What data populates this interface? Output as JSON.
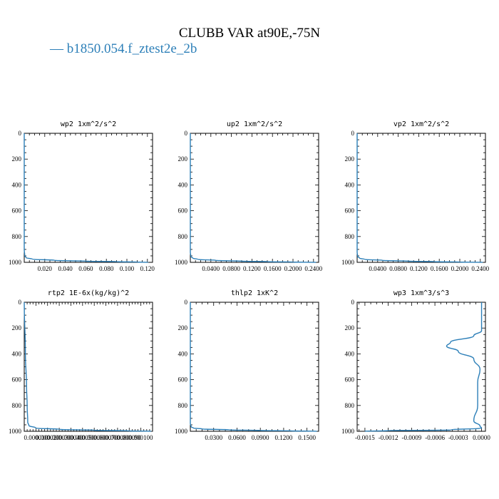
{
  "title": "CLUBB VAR at90E,-75N",
  "legend": {
    "dash": "—",
    "label": "b1850.054.f_ztest2e_2b"
  },
  "colors": {
    "line": "#2c7fb8",
    "axis": "#000000"
  },
  "chart_data": [
    {
      "type": "line",
      "title": "wp2   1xm^2/s^2",
      "ylim": [
        1000,
        0
      ],
      "yticks": [
        "0",
        "200",
        "400",
        "600",
        "800",
        "1000"
      ],
      "xlim": [
        0.0,
        0.125
      ],
      "xticks": [
        {
          "v": 0.02,
          "label": "0.020"
        },
        {
          "v": 0.04,
          "label": "0.040"
        },
        {
          "v": 0.06,
          "label": "0.060"
        },
        {
          "v": 0.08,
          "label": "0.080"
        },
        {
          "v": 0.1,
          "label": "0.100"
        },
        {
          "v": 0.12,
          "label": "0.120"
        }
      ],
      "series": [
        {
          "x": [
            0.0,
            0.0,
            0.0005,
            0.002,
            0.008,
            0.03,
            0.06,
            0.09,
            0.11,
            0.121
          ],
          "y": [
            0,
            900,
            950,
            965,
            975,
            985,
            991,
            995,
            998,
            1000
          ]
        }
      ]
    },
    {
      "type": "line",
      "title": "up2   1xm^2/s^2",
      "ylim": [
        1000,
        0
      ],
      "yticks": [
        "0",
        "200",
        "400",
        "600",
        "800",
        "1000"
      ],
      "xlim": [
        0.0,
        0.25
      ],
      "xticks": [
        {
          "v": 0.04,
          "label": "0.0400"
        },
        {
          "v": 0.08,
          "label": "0.0800"
        },
        {
          "v": 0.12,
          "label": "0.1200"
        },
        {
          "v": 0.16,
          "label": "0.1600"
        },
        {
          "v": 0.2,
          "label": "0.2000"
        },
        {
          "v": 0.24,
          "label": "0.2400"
        }
      ],
      "series": [
        {
          "x": [
            0.0,
            0.0,
            0.001,
            0.005,
            0.015,
            0.05,
            0.1,
            0.15,
            0.2,
            0.245
          ],
          "y": [
            0,
            920,
            955,
            968,
            977,
            985,
            991,
            995,
            998,
            1000
          ]
        }
      ]
    },
    {
      "type": "line",
      "title": "vp2   1xm^2/s^2",
      "ylim": [
        1000,
        0
      ],
      "yticks": [
        "0",
        "200",
        "400",
        "600",
        "800",
        "1000"
      ],
      "xlim": [
        0.0,
        0.25
      ],
      "xticks": [
        {
          "v": 0.04,
          "label": "0.0400"
        },
        {
          "v": 0.08,
          "label": "0.0800"
        },
        {
          "v": 0.12,
          "label": "0.1200"
        },
        {
          "v": 0.16,
          "label": "0.1600"
        },
        {
          "v": 0.2,
          "label": "0.2000"
        },
        {
          "v": 0.24,
          "label": "0.2400"
        }
      ],
      "series": [
        {
          "x": [
            0.0,
            0.0,
            0.001,
            0.005,
            0.015,
            0.05,
            0.1,
            0.15,
            0.2,
            0.245
          ],
          "y": [
            0,
            920,
            955,
            968,
            977,
            985,
            991,
            995,
            998,
            1000
          ]
        }
      ]
    },
    {
      "type": "line",
      "title": "rtp2   1E-6x(kg/kg)^2",
      "ylim": [
        1000,
        0
      ],
      "yticks": [
        "0",
        "200",
        "400",
        "600",
        "800",
        "1000"
      ],
      "xlim": [
        0.0,
        0.00011
      ],
      "xticks": [
        {
          "v": 1e-05,
          "label": "0.000010"
        },
        {
          "v": 2e-05,
          "label": "0.000020"
        },
        {
          "v": 3e-05,
          "label": "0.000030"
        },
        {
          "v": 4e-05,
          "label": "0.000040"
        },
        {
          "v": 5e-05,
          "label": "0.000050"
        },
        {
          "v": 6e-05,
          "label": "0.000060"
        },
        {
          "v": 7e-05,
          "label": "0.000070"
        },
        {
          "v": 8e-05,
          "label": "0.000080"
        },
        {
          "v": 9e-05,
          "label": "0.000090"
        },
        {
          "v": 0.0001,
          "label": "0.000100"
        }
      ],
      "series": [
        {
          "x": [
            0.0,
            1e-06,
            2e-06,
            2.5e-06,
            3e-06,
            4e-06,
            1e-05,
            3e-05,
            6e-05,
            9e-05,
            0.000109
          ],
          "y": [
            0,
            400,
            650,
            800,
            930,
            955,
            975,
            985,
            992,
            997,
            1000
          ]
        }
      ]
    },
    {
      "type": "line",
      "title": "thlp2   1xK^2",
      "ylim": [
        1000,
        0
      ],
      "yticks": [
        "0",
        "200",
        "400",
        "600",
        "800",
        "1000"
      ],
      "xlim": [
        0.0,
        0.165
      ],
      "xticks": [
        {
          "v": 0.03,
          "label": "0.0300"
        },
        {
          "v": 0.06,
          "label": "0.0600"
        },
        {
          "v": 0.09,
          "label": "0.0900"
        },
        {
          "v": 0.12,
          "label": "0.1200"
        },
        {
          "v": 0.15,
          "label": "0.1500"
        }
      ],
      "series": [
        {
          "x": [
            0.0,
            0.0,
            0.001,
            0.004,
            0.015,
            0.05,
            0.09,
            0.13,
            0.163
          ],
          "y": [
            0,
            940,
            965,
            975,
            982,
            989,
            994,
            997,
            1000
          ]
        }
      ]
    },
    {
      "type": "line",
      "title": "wp3   1xm^3/s^3",
      "ylim": [
        1000,
        0
      ],
      "yticks": [
        "0",
        "200",
        "400",
        "600",
        "800",
        "1000"
      ],
      "xlim": [
        -0.0016,
        5e-05
      ],
      "xticks": [
        {
          "v": -0.0015,
          "label": "-0.0015"
        },
        {
          "v": -0.0012,
          "label": "-0.0012"
        },
        {
          "v": -0.0009,
          "label": "-0.0009"
        },
        {
          "v": -0.0006,
          "label": "-0.0006"
        },
        {
          "v": -0.0003,
          "label": "-0.0003"
        },
        {
          "v": 0.0,
          "label": "0.0000"
        }
      ],
      "series": [
        {
          "x": [
            0.0,
            0.0,
            -0.0001,
            -0.0004,
            -0.00045,
            -0.0003,
            -0.0001,
            -2e-05,
            -5e-05,
            -5e-05,
            -0.0001,
            -2e-05,
            0.0,
            -0.0004,
            -0.0012,
            -0.0015
          ],
          "y": [
            0,
            220,
            260,
            310,
            340,
            380,
            440,
            520,
            620,
            800,
            920,
            960,
            975,
            990,
            995,
            1000
          ]
        }
      ]
    }
  ]
}
